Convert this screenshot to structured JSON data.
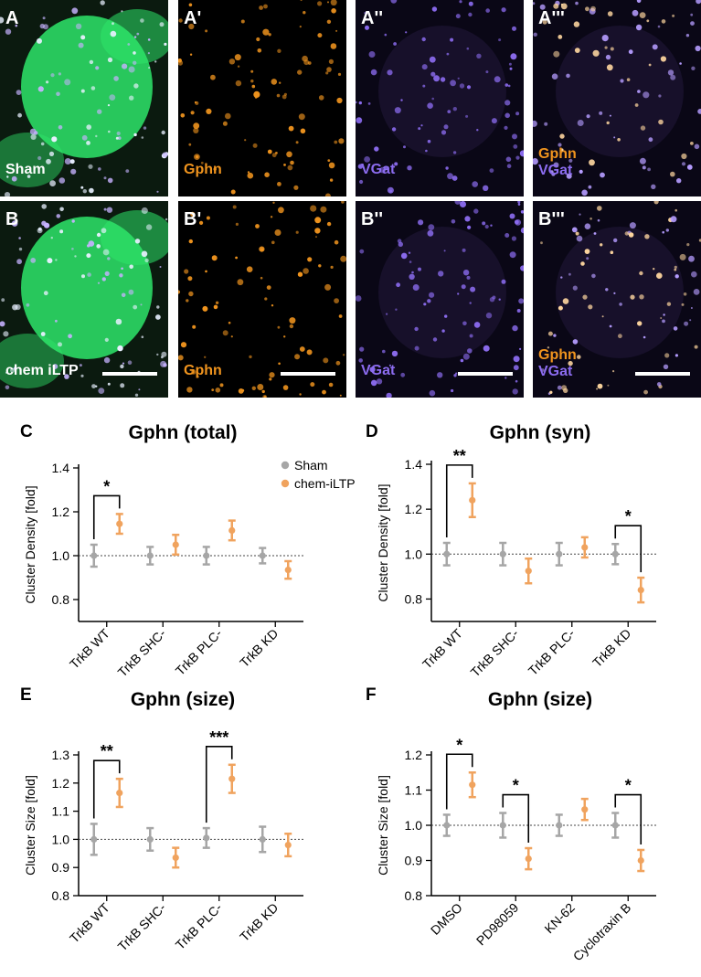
{
  "micrographs": {
    "rows": [
      {
        "letter": "A",
        "panels": [
          {
            "label": "A",
            "overlay": [
              "Sham"
            ],
            "bg": "#0b1a0f"
          },
          {
            "label": "A'",
            "overlay": [
              "Gphn"
            ],
            "bg": "#000000"
          },
          {
            "label": "A''",
            "overlay": [
              "VGat"
            ],
            "bg": "#0a0716"
          },
          {
            "label": "A'''",
            "overlay": [
              "Gphn",
              "VGat"
            ],
            "bg": "#0a0716"
          }
        ]
      },
      {
        "letter": "B",
        "panels": [
          {
            "label": "B",
            "overlay": [
              "chem iLTP"
            ],
            "bg": "#0b1a0f"
          },
          {
            "label": "B'",
            "overlay": [
              "Gphn"
            ],
            "bg": "#000000"
          },
          {
            "label": "B''",
            "overlay": [
              "VGat"
            ],
            "bg": "#0a0716"
          },
          {
            "label": "B'''",
            "overlay": [
              "Gphn",
              "VGat"
            ],
            "bg": "#0a0716"
          }
        ]
      }
    ],
    "colors": {
      "gphn": "#f0941e",
      "vgat": "#8c6cf0",
      "cell": "#2ee66a",
      "label": "#ffffff"
    }
  },
  "legend": {
    "entries": [
      {
        "name": "Sham",
        "color": "#a6a6a6"
      },
      {
        "name": "chem-iLTP",
        "color": "#f0a35e"
      }
    ]
  },
  "chart_data": [
    {
      "panel": "C",
      "type": "scatter",
      "title": "Gphn (total)",
      "ylabel": "Cluster Density [fold]",
      "ylim": [
        0.7,
        1.4
      ],
      "yticks": [
        0.8,
        1.0,
        1.2,
        1.4
      ],
      "ytick_labels": [
        "0.8",
        "1.0",
        "1.2",
        "1.4"
      ],
      "reference_line": 1.0,
      "categories": [
        "TrkB WT",
        "TrkB SHC-",
        "TrkB PLC-",
        "TrkB KD"
      ],
      "series": [
        {
          "name": "Sham",
          "values": [
            1.0,
            1.0,
            1.0,
            1.0
          ],
          "err": [
            0.05,
            0.04,
            0.04,
            0.035
          ]
        },
        {
          "name": "chem-iLTP",
          "values": [
            1.145,
            1.05,
            1.115,
            0.935
          ],
          "err": [
            0.045,
            0.045,
            0.045,
            0.04
          ]
        }
      ],
      "significance": [
        {
          "category": 0,
          "label": "*",
          "style": "bracket"
        }
      ]
    },
    {
      "panel": "D",
      "type": "scatter",
      "title": "Gphn (syn)",
      "ylabel": "Cluster Density [fold]",
      "ylim": [
        0.7,
        1.4
      ],
      "yticks": [
        0.8,
        1.0,
        1.2,
        1.4
      ],
      "ytick_labels": [
        "0.8",
        "1.0",
        "1.2",
        "1.4"
      ],
      "reference_line": 1.0,
      "categories": [
        "TrkB WT",
        "TrkB SHC-",
        "TrkB PLC-",
        "TrkB KD"
      ],
      "series": [
        {
          "name": "Sham",
          "values": [
            1.0,
            1.0,
            1.0,
            1.0
          ],
          "err": [
            0.05,
            0.05,
            0.05,
            0.045
          ]
        },
        {
          "name": "chem-iLTP",
          "values": [
            1.24,
            0.925,
            1.03,
            0.84
          ],
          "err": [
            0.075,
            0.055,
            0.045,
            0.055
          ]
        }
      ],
      "significance": [
        {
          "category": 0,
          "label": "**",
          "style": "bracket"
        },
        {
          "category": 3,
          "label": "*",
          "style": "bracket"
        }
      ]
    },
    {
      "panel": "E",
      "type": "scatter",
      "title": "Gphn (size)",
      "ylabel": "Cluster Size [fold]",
      "ylim": [
        0.8,
        1.3
      ],
      "yticks": [
        0.8,
        0.9,
        1.0,
        1.1,
        1.2,
        1.3
      ],
      "ytick_labels": [
        "0.8",
        "0.9",
        "1.0",
        "1.1",
        "1.2",
        "1.3"
      ],
      "reference_line": 1.0,
      "categories": [
        "TrkB WT",
        "TrkB SHC-",
        "TrkB PLC-",
        "TrkB KD"
      ],
      "series": [
        {
          "name": "Sham",
          "values": [
            1.0,
            1.0,
            1.005,
            1.0
          ],
          "err": [
            0.055,
            0.04,
            0.035,
            0.045
          ]
        },
        {
          "name": "chem-iLTP",
          "values": [
            1.165,
            0.935,
            1.215,
            0.98
          ],
          "err": [
            0.05,
            0.035,
            0.05,
            0.04
          ]
        }
      ],
      "significance": [
        {
          "category": 0,
          "label": "**",
          "style": "bracket"
        },
        {
          "category": 2,
          "label": "***",
          "style": "bracket"
        }
      ]
    },
    {
      "panel": "F",
      "type": "scatter",
      "title": "Gphn (size)",
      "ylabel": "Cluster Size [fold]",
      "ylim": [
        0.8,
        1.2
      ],
      "yticks": [
        0.8,
        0.9,
        1.0,
        1.1,
        1.2
      ],
      "ytick_labels": [
        "0.8",
        "0.9",
        "1.0",
        "1.1",
        "1.2"
      ],
      "reference_line": 1.0,
      "categories": [
        "DMSO",
        "PD98059",
        "KN-62",
        "Cyclotraxin B"
      ],
      "series": [
        {
          "name": "Sham",
          "values": [
            1.0,
            1.0,
            1.0,
            1.0
          ],
          "err": [
            0.03,
            0.035,
            0.03,
            0.035
          ]
        },
        {
          "name": "chem-iLTP",
          "values": [
            1.115,
            0.905,
            1.045,
            0.9
          ],
          "err": [
            0.035,
            0.03,
            0.03,
            0.03
          ]
        }
      ],
      "significance": [
        {
          "category": 0,
          "label": "*",
          "style": "bracket"
        },
        {
          "category": 1,
          "label": "*",
          "style": "bracket"
        },
        {
          "category": 3,
          "label": "*",
          "style": "bracket"
        }
      ]
    }
  ],
  "colors": {
    "sham": "#a6a6a6",
    "iltp": "#f0a35e",
    "axis": "#000000",
    "reference": "#444444"
  }
}
